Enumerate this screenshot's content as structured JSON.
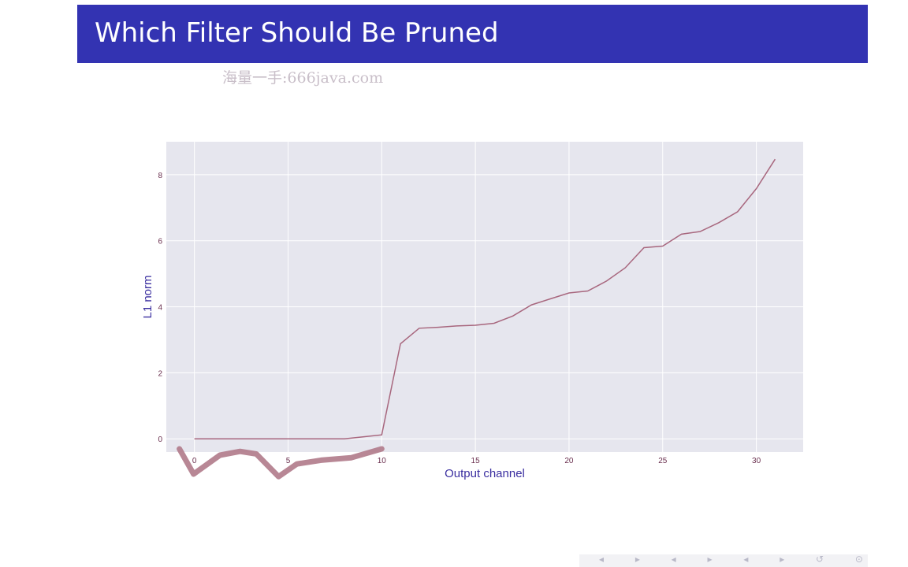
{
  "slide": {
    "title": "Which Filter Should Be Pruned",
    "watermark": "海量一手:666java.com"
  },
  "colors": {
    "title_bar": "#3333b2",
    "plot_bg": "#e6e6ee",
    "line": "#a8677e",
    "axis_label": "#3b2fa0",
    "tick_label": "#6a2f4e",
    "annotation": "#b07a8a"
  },
  "chart_data": {
    "type": "line",
    "title": "",
    "xlabel": "Output channel",
    "ylabel": "L1 norm",
    "xlim": [
      -1.5,
      32.5
    ],
    "ylim": [
      -0.4,
      9.0
    ],
    "xticks": [
      0,
      5,
      10,
      15,
      20,
      25,
      30
    ],
    "yticks": [
      0,
      2,
      4,
      6,
      8
    ],
    "grid": true,
    "series": [
      {
        "x": [
          0,
          1,
          2,
          3,
          4,
          5,
          6,
          7,
          8,
          9,
          10,
          11,
          12,
          13,
          14,
          15,
          16,
          17,
          18,
          19,
          20,
          21,
          22,
          23,
          24,
          25,
          26,
          27,
          28,
          29,
          30,
          31
        ],
        "values": [
          0.0,
          0.0,
          0.0,
          0.0,
          0.0,
          0.0,
          0.0,
          0.0,
          0.0,
          0.06,
          0.12,
          2.88,
          3.35,
          3.38,
          3.42,
          3.44,
          3.5,
          3.72,
          4.06,
          4.24,
          4.42,
          4.48,
          4.78,
          5.18,
          5.79,
          5.84,
          6.2,
          6.28,
          6.55,
          6.88,
          7.58,
          8.47
        ]
      }
    ],
    "annotation": {
      "type": "hand-drawn underline",
      "x_range": [
        -0.8,
        10
      ]
    }
  },
  "nav": {
    "symbols": "◂ ▸ ◂ ▸ ◂ ▸ ↺ ⊙"
  }
}
